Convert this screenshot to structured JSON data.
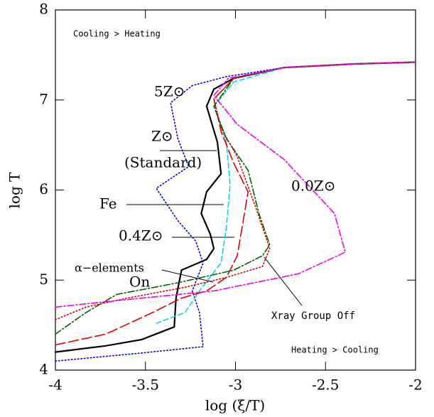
{
  "chart_data": {
    "type": "line",
    "x_label": "log (ξ/T)",
    "y_label": "log T",
    "xlim": [
      -4,
      -2
    ],
    "ylim": [
      4,
      8
    ],
    "xticks": [
      -4,
      -3.5,
      -3,
      -2.5,
      -2
    ],
    "yticks": [
      4,
      5,
      6,
      7,
      8
    ],
    "annotations": [
      "Cooling > Heating",
      "Heating > Cooling",
      "(Standard)",
      "On"
    ],
    "series": [
      {
        "name": "Z⊙",
        "color": "#000000",
        "dash": "solid",
        "x": [
          -4,
          -3.72,
          -3.52,
          -3.34,
          -3.33,
          -3.3,
          -3.16,
          -3.12,
          -3.14,
          -3.19,
          -3.16,
          -3.08,
          -3.1,
          -3.16,
          -3.12,
          -3.01,
          -2.73,
          -2.34,
          -2.0
        ],
        "values": [
          4.2,
          4.27,
          4.34,
          4.48,
          4.8,
          5.11,
          5.23,
          5.35,
          5.51,
          5.74,
          5.98,
          6.18,
          6.53,
          6.93,
          7.12,
          7.24,
          7.36,
          7.4,
          7.42
        ]
      },
      {
        "name": "5Z⊙",
        "color": "#0000dd",
        "dash": "dotted",
        "x": [
          -4,
          -3.52,
          -3.18,
          -3.2,
          -3.24,
          -3.18,
          -3.22,
          -3.32,
          -3.44,
          -3.26,
          -3.32,
          -3.36,
          -3.24,
          -3.05,
          -2.73,
          -2.34,
          -2.0
        ],
        "values": [
          4.1,
          4.19,
          4.26,
          4.64,
          4.88,
          5.19,
          5.43,
          5.66,
          6.02,
          6.26,
          6.57,
          6.97,
          7.16,
          7.26,
          7.36,
          7.4,
          7.42
        ]
      },
      {
        "name": "Fe",
        "color": "#00d8e8",
        "dash": "dashed",
        "x": [
          -3.44,
          -3.28,
          -3.2,
          -3.08,
          -3.05,
          -3.03,
          -3.05,
          -3.12,
          -3.01,
          -2.73,
          -2.34,
          -2.0
        ],
        "values": [
          4.52,
          4.64,
          4.88,
          5.19,
          5.59,
          6.06,
          6.53,
          6.93,
          7.2,
          7.36,
          7.4,
          7.42
        ]
      },
      {
        "name": "0.4Z⊙",
        "color": "#e00000",
        "dash": "longdash",
        "x": [
          -4,
          -3.72,
          -3.46,
          -3.3,
          -3.16,
          -3.05,
          -2.99,
          -2.95,
          -2.93,
          -3.01,
          -3.08,
          -3.12,
          -3.01,
          -2.73,
          -2.34,
          -2.0
        ],
        "values": [
          4.28,
          4.4,
          4.64,
          4.8,
          4.88,
          5.03,
          5.27,
          5.74,
          5.98,
          6.3,
          6.65,
          7.01,
          7.24,
          7.36,
          7.4,
          7.42
        ]
      },
      {
        "name": "Xray Group Off",
        "color": "#006400",
        "dash": "dashdot",
        "x": [
          -4,
          -3.83,
          -3.66,
          -3.32,
          -3.01,
          -2.85,
          -2.81,
          -2.87,
          -2.93,
          -3.05,
          -3.12,
          -3.01,
          -2.73,
          -2.34,
          -2.0
        ],
        "values": [
          4.4,
          4.64,
          4.84,
          4.97,
          5.11,
          5.27,
          5.39,
          5.74,
          6.22,
          6.57,
          6.93,
          7.24,
          7.36,
          7.4,
          7.42
        ]
      },
      {
        "name": "α−elements",
        "color": "#e00000",
        "dash": "dotted",
        "x": [
          -4,
          -3.83,
          -3.6,
          -3.28,
          -3.05,
          -2.85,
          -2.81,
          -2.89,
          -2.99,
          -3.08,
          -3.12,
          -3.01,
          -2.73,
          -2.34,
          -2.0
        ],
        "values": [
          4.56,
          4.7,
          4.8,
          4.92,
          5.03,
          5.15,
          5.35,
          5.82,
          6.37,
          6.69,
          7.01,
          7.24,
          7.36,
          7.4,
          7.42
        ]
      },
      {
        "name": "0.0Z⊙",
        "color": "#ee00ee",
        "dash": "dashdot",
        "x": [
          -4,
          -3.72,
          -3.12,
          -2.65,
          -2.39,
          -2.45,
          -2.73,
          -2.99,
          -3.12,
          -3.04,
          -2.73,
          -2.34,
          -2.0
        ],
        "values": [
          4.7,
          4.76,
          4.88,
          5.07,
          5.31,
          5.74,
          6.34,
          6.73,
          7.05,
          7.24,
          7.36,
          7.4,
          7.42
        ]
      }
    ]
  }
}
